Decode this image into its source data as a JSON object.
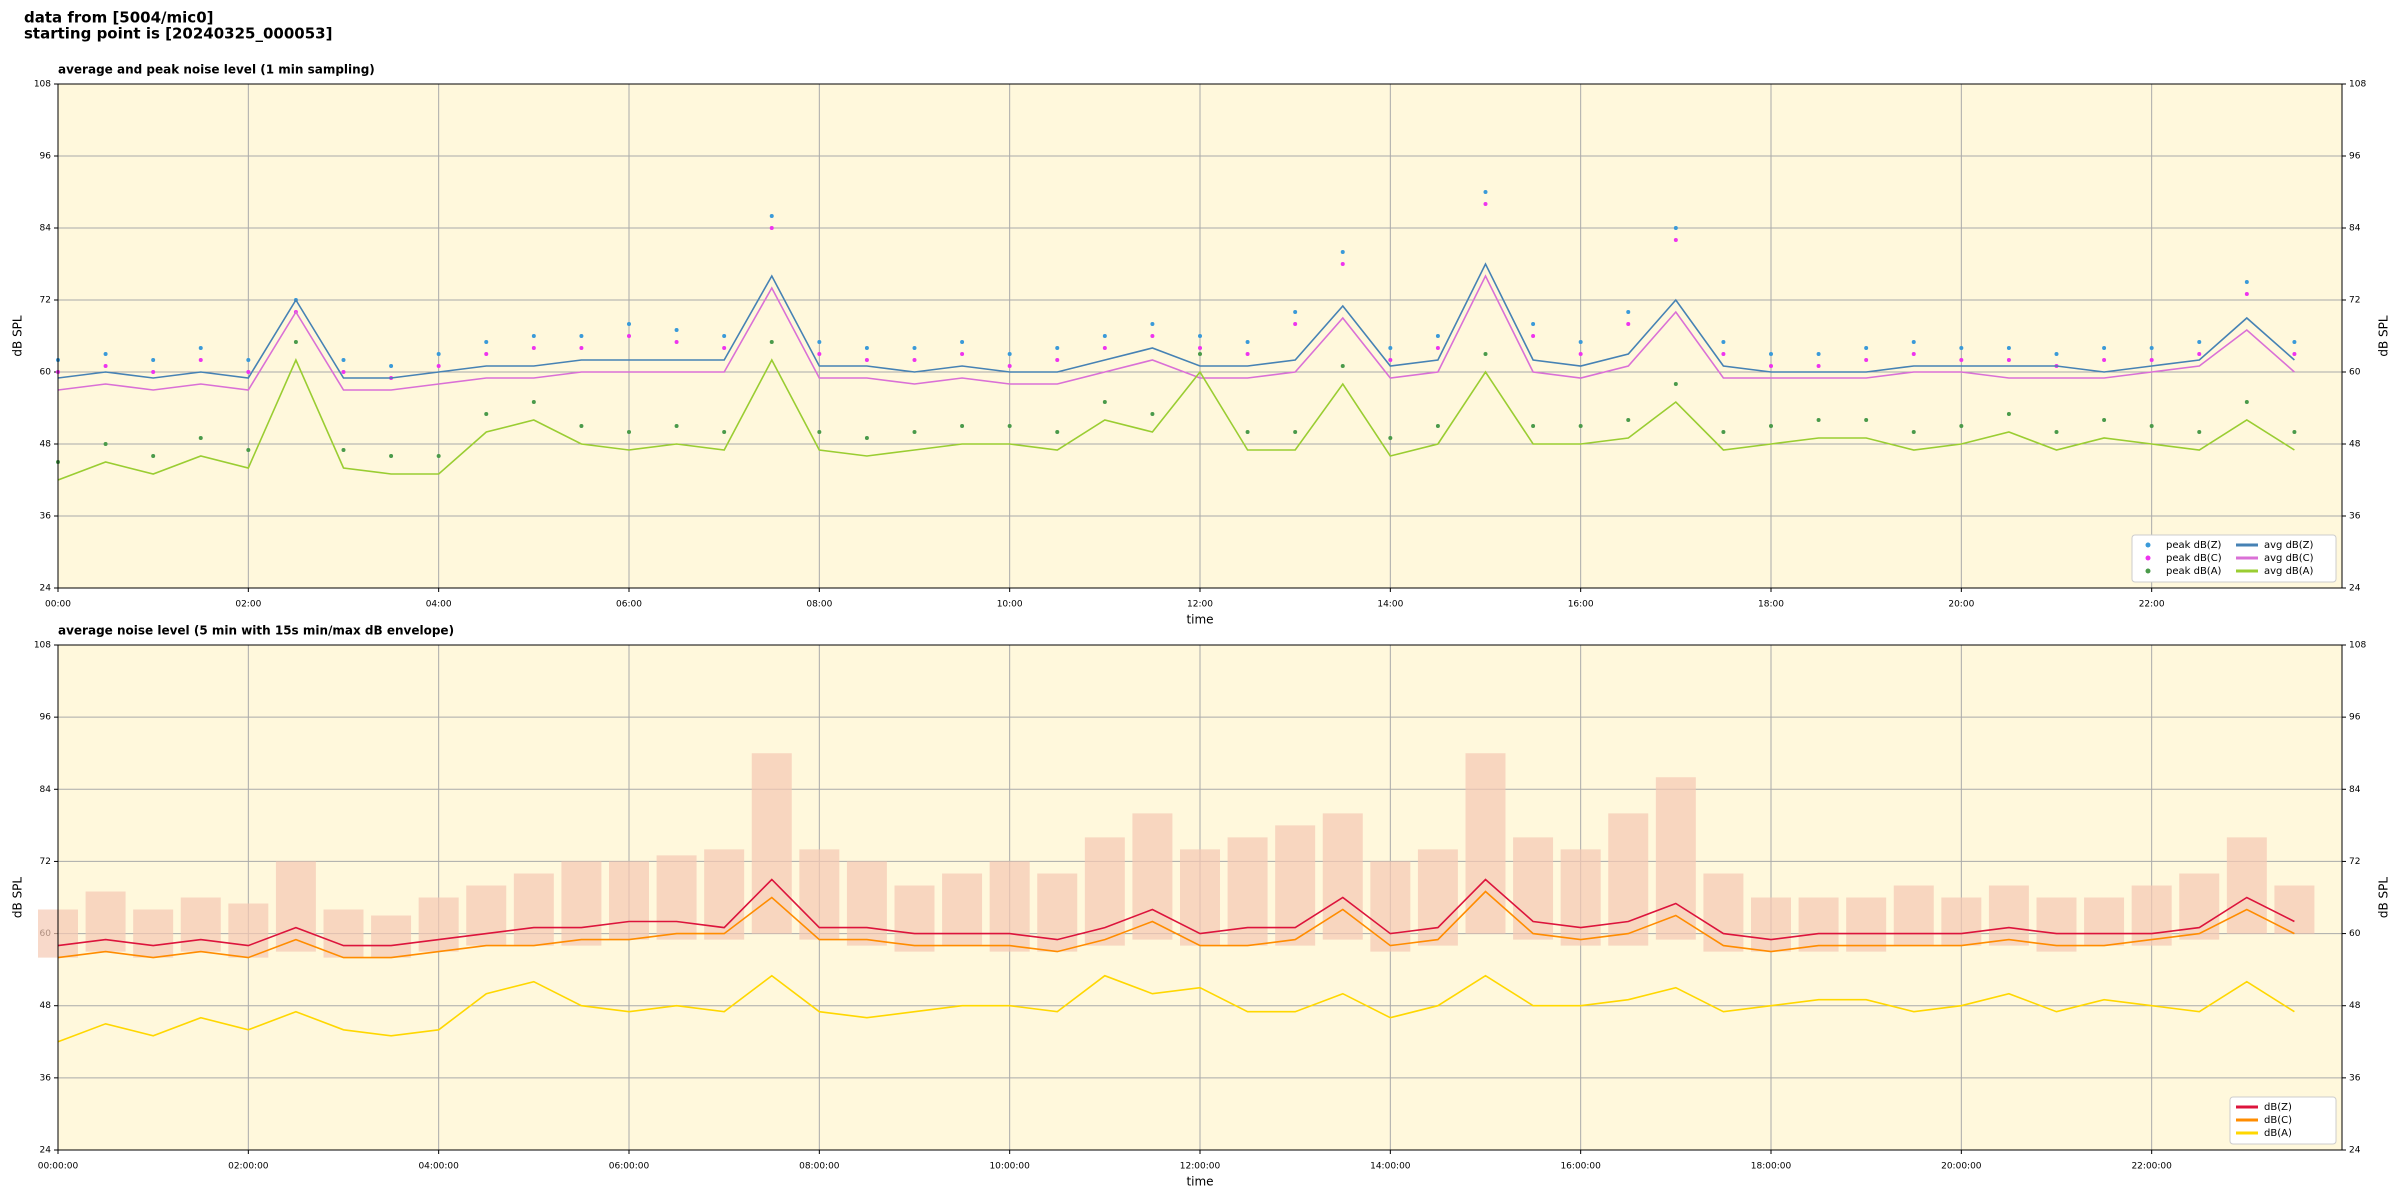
{
  "header": {
    "line1": "data from [5004/mic0]",
    "line2": "starting point is [20240325_000053]"
  },
  "chart_data": [
    {
      "type": "line",
      "title": "average and peak noise level (1 min sampling)",
      "x_label": "time",
      "y_label": "dB SPL",
      "y2_label": "dB SPL",
      "xlim": [
        "00:00",
        "24:00"
      ],
      "xticks": [
        "00:00",
        "02:00",
        "04:00",
        "06:00",
        "08:00",
        "10:00",
        "12:00",
        "14:00",
        "16:00",
        "18:00",
        "20:00",
        "22:00"
      ],
      "ylim": [
        24,
        108
      ],
      "yticks": [
        24,
        36,
        48,
        60,
        72,
        84,
        96,
        108
      ],
      "grid": true,
      "background": "#fff8dc",
      "legend": "lower right",
      "legend_columns": 2,
      "x": [
        "00:00",
        "00:30",
        "01:00",
        "01:30",
        "02:00",
        "02:30",
        "03:00",
        "03:30",
        "04:00",
        "04:30",
        "05:00",
        "05:30",
        "06:00",
        "06:30",
        "07:00",
        "07:30",
        "08:00",
        "08:30",
        "09:00",
        "09:30",
        "10:00",
        "10:30",
        "11:00",
        "11:30",
        "12:00",
        "12:30",
        "13:00",
        "13:30",
        "14:00",
        "14:30",
        "15:00",
        "15:30",
        "16:00",
        "16:30",
        "17:00",
        "17:30",
        "18:00",
        "18:30",
        "19:00",
        "19:30",
        "20:00",
        "20:30",
        "21:00",
        "21:30",
        "22:00",
        "22:30",
        "23:00",
        "23:30"
      ],
      "series": [
        {
          "name": "peak dB(Z)",
          "style": "points",
          "color": "#3a9ad9",
          "values": [
            62,
            63,
            62,
            64,
            62,
            72,
            62,
            61,
            63,
            65,
            66,
            66,
            68,
            67,
            66,
            86,
            65,
            64,
            64,
            65,
            63,
            64,
            66,
            68,
            66,
            65,
            70,
            80,
            64,
            66,
            90,
            68,
            65,
            70,
            84,
            65,
            63,
            63,
            64,
            65,
            64,
            64,
            63,
            64,
            64,
            65,
            75,
            65
          ]
        },
        {
          "name": "peak dB(C)",
          "style": "points",
          "color": "#ee33ee",
          "values": [
            60,
            61,
            60,
            62,
            60,
            70,
            60,
            59,
            61,
            63,
            64,
            64,
            66,
            65,
            64,
            84,
            63,
            62,
            62,
            63,
            61,
            62,
            64,
            66,
            64,
            63,
            68,
            78,
            62,
            64,
            88,
            66,
            63,
            68,
            82,
            63,
            61,
            61,
            62,
            63,
            62,
            62,
            61,
            62,
            62,
            63,
            73,
            63
          ]
        },
        {
          "name": "peak dB(A)",
          "style": "points",
          "color": "#4a9a4a",
          "values": [
            45,
            48,
            46,
            49,
            47,
            65,
            47,
            46,
            46,
            53,
            55,
            51,
            50,
            51,
            50,
            65,
            50,
            49,
            50,
            51,
            51,
            50,
            55,
            53,
            63,
            50,
            50,
            61,
            49,
            51,
            63,
            51,
            51,
            52,
            58,
            50,
            51,
            52,
            52,
            50,
            51,
            53,
            50,
            52,
            51,
            50,
            55,
            50
          ]
        },
        {
          "name": "avg dB(Z)",
          "style": "line",
          "color": "#4682b4",
          "values": [
            59,
            60,
            59,
            60,
            59,
            72,
            59,
            59,
            60,
            61,
            61,
            62,
            62,
            62,
            62,
            76,
            61,
            61,
            60,
            61,
            60,
            60,
            62,
            64,
            61,
            61,
            62,
            71,
            61,
            62,
            78,
            62,
            61,
            63,
            72,
            61,
            60,
            60,
            60,
            61,
            61,
            61,
            61,
            60,
            61,
            62,
            69,
            62
          ]
        },
        {
          "name": "avg dB(C)",
          "style": "line",
          "color": "#da70d6",
          "values": [
            57,
            58,
            57,
            58,
            57,
            70,
            57,
            57,
            58,
            59,
            59,
            60,
            60,
            60,
            60,
            74,
            59,
            59,
            58,
            59,
            58,
            58,
            60,
            62,
            59,
            59,
            60,
            69,
            59,
            60,
            76,
            60,
            59,
            61,
            70,
            59,
            59,
            59,
            59,
            60,
            60,
            59,
            59,
            59,
            60,
            61,
            67,
            60
          ]
        },
        {
          "name": "avg dB(A)",
          "style": "line",
          "color": "#9acd32",
          "values": [
            42,
            45,
            43,
            46,
            44,
            62,
            44,
            43,
            43,
            50,
            52,
            48,
            47,
            48,
            47,
            62,
            47,
            46,
            47,
            48,
            48,
            47,
            52,
            50,
            60,
            47,
            47,
            58,
            46,
            48,
            60,
            48,
            48,
            49,
            55,
            47,
            48,
            49,
            49,
            47,
            48,
            50,
            47,
            49,
            48,
            47,
            52,
            47
          ]
        }
      ]
    },
    {
      "type": "line",
      "title": "average noise level (5 min with 15s min/max dB envelope)",
      "x_label": "time",
      "y_label": "dB SPL",
      "y2_label": "dB SPL",
      "xlim": [
        "00:00:00",
        "24:00:00"
      ],
      "xticks": [
        "00:00:00",
        "02:00:00",
        "04:00:00",
        "06:00:00",
        "08:00:00",
        "10:00:00",
        "12:00:00",
        "14:00:00",
        "16:00:00",
        "18:00:00",
        "20:00:00",
        "22:00:00"
      ],
      "ylim": [
        24,
        108
      ],
      "yticks": [
        24,
        36,
        48,
        60,
        72,
        84,
        96,
        108
      ],
      "grid": true,
      "background": "#fff8dc",
      "legend": "lower right",
      "legend_columns": 1,
      "x": [
        "00:00:00",
        "00:30:00",
        "01:00:00",
        "01:30:00",
        "02:00:00",
        "02:30:00",
        "03:00:00",
        "03:30:00",
        "04:00:00",
        "04:30:00",
        "05:00:00",
        "05:30:00",
        "06:00:00",
        "06:30:00",
        "07:00:00",
        "07:30:00",
        "08:00:00",
        "08:30:00",
        "09:00:00",
        "09:30:00",
        "10:00:00",
        "10:30:00",
        "11:00:00",
        "11:30:00",
        "12:00:00",
        "12:30:00",
        "13:00:00",
        "13:30:00",
        "14:00:00",
        "14:30:00",
        "15:00:00",
        "15:30:00",
        "16:00:00",
        "16:30:00",
        "17:00:00",
        "17:30:00",
        "18:00:00",
        "18:30:00",
        "19:00:00",
        "19:30:00",
        "20:00:00",
        "20:30:00",
        "21:00:00",
        "21:30:00",
        "22:00:00",
        "22:30:00",
        "23:00:00",
        "23:30:00"
      ],
      "envelope": {
        "color": "#f6c9b4",
        "low": [
          56,
          57,
          56,
          57,
          56,
          57,
          56,
          56,
          57,
          58,
          58,
          58,
          59,
          59,
          59,
          60,
          59,
          58,
          57,
          58,
          57,
          57,
          58,
          59,
          58,
          58,
          58,
          59,
          57,
          58,
          60,
          59,
          58,
          58,
          59,
          57,
          57,
          57,
          57,
          58,
          58,
          58,
          57,
          58,
          58,
          59,
          60,
          60
        ],
        "high": [
          64,
          67,
          64,
          66,
          65,
          72,
          64,
          63,
          66,
          68,
          70,
          72,
          72,
          73,
          74,
          90,
          74,
          72,
          68,
          70,
          72,
          70,
          76,
          80,
          74,
          76,
          78,
          80,
          72,
          74,
          90,
          76,
          74,
          80,
          86,
          70,
          66,
          66,
          66,
          68,
          66,
          68,
          66,
          66,
          68,
          70,
          76,
          68
        ]
      },
      "series": [
        {
          "name": "dB(Z)",
          "style": "line",
          "color": "#dc143c",
          "values": [
            58,
            59,
            58,
            59,
            58,
            61,
            58,
            58,
            59,
            60,
            61,
            61,
            62,
            62,
            61,
            69,
            61,
            61,
            60,
            60,
            60,
            59,
            61,
            64,
            60,
            61,
            61,
            66,
            60,
            61,
            69,
            62,
            61,
            62,
            65,
            60,
            59,
            60,
            60,
            60,
            60,
            61,
            60,
            60,
            60,
            61,
            66,
            62
          ]
        },
        {
          "name": "dB(C)",
          "style": "line",
          "color": "#ff8c00",
          "values": [
            56,
            57,
            56,
            57,
            56,
            59,
            56,
            56,
            57,
            58,
            58,
            59,
            59,
            60,
            60,
            66,
            59,
            59,
            58,
            58,
            58,
            57,
            59,
            62,
            58,
            58,
            59,
            64,
            58,
            59,
            67,
            60,
            59,
            60,
            63,
            58,
            57,
            58,
            58,
            58,
            58,
            59,
            58,
            58,
            59,
            60,
            64,
            60
          ]
        },
        {
          "name": "dB(A)",
          "style": "line",
          "color": "#ffd700",
          "values": [
            42,
            45,
            43,
            46,
            44,
            47,
            44,
            43,
            44,
            50,
            52,
            48,
            47,
            48,
            47,
            53,
            47,
            46,
            47,
            48,
            48,
            47,
            53,
            50,
            51,
            47,
            47,
            50,
            46,
            48,
            53,
            48,
            48,
            49,
            51,
            47,
            48,
            49,
            49,
            47,
            48,
            50,
            47,
            49,
            48,
            47,
            52,
            47
          ]
        }
      ]
    }
  ]
}
